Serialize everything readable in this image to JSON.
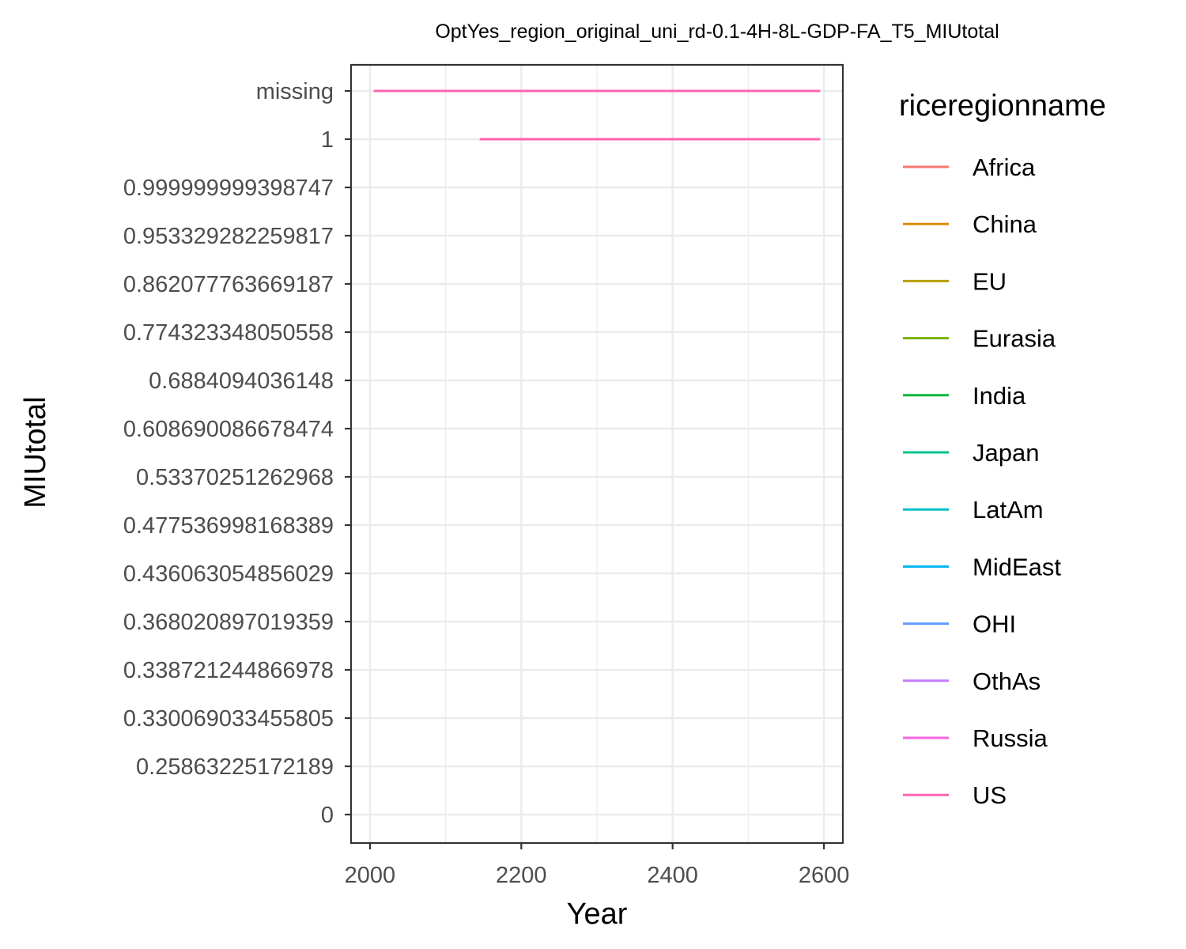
{
  "chart_data": {
    "type": "line",
    "title": "OptYes_region_original_uni_rd-0.1-4H-8L-GDP-FA_T5_MIUtotal",
    "xlabel": "Year",
    "ylabel": "MIUtotal",
    "xlim": [
      1975,
      2625
    ],
    "x_ticks": [
      "2000",
      "2200",
      "2400",
      "2600"
    ],
    "y_categories": [
      "0",
      "0.25863225172189",
      "0.330069033455805",
      "0.338721244866978",
      "0.368020897019359",
      "0.436063054856029",
      "0.477536998168389",
      "0.53370251262968",
      "0.608690086678474",
      "0.6884094036148",
      "0.774323348050558",
      "0.862077763669187",
      "0.953329282259817",
      "0.999999999398747",
      "1",
      "missing"
    ],
    "grid": true,
    "legend": {
      "title": "riceregionname",
      "position": "right",
      "entries": [
        {
          "name": "Africa",
          "color": "#F8766D"
        },
        {
          "name": "China",
          "color": "#DE8C00"
        },
        {
          "name": "EU",
          "color": "#B79F00"
        },
        {
          "name": "Eurasia",
          "color": "#7CAE00"
        },
        {
          "name": "India",
          "color": "#00BA38"
        },
        {
          "name": "Japan",
          "color": "#00C08B"
        },
        {
          "name": "LatAm",
          "color": "#00BFC4"
        },
        {
          "name": "MidEast",
          "color": "#00B4F0"
        },
        {
          "name": "OHI",
          "color": "#619CFF"
        },
        {
          "name": "OthAs",
          "color": "#C77CFF"
        },
        {
          "name": "Russia",
          "color": "#F564E3"
        },
        {
          "name": "US",
          "color": "#FF64B0"
        }
      ]
    },
    "series": [
      {
        "region": "US",
        "color": "#FF64B0",
        "segments": [
          {
            "category": "missing",
            "x_start": 2005,
            "x_end": 2595
          },
          {
            "category": "1",
            "x_start": 2145,
            "x_end": 2595
          }
        ]
      }
    ]
  }
}
